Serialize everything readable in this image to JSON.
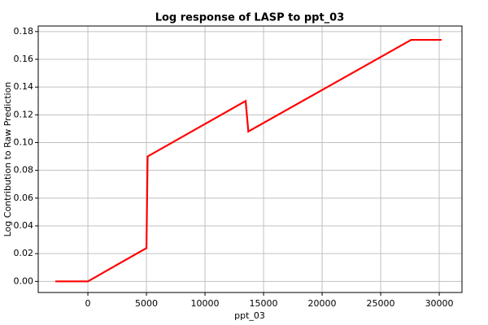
{
  "chart_data": {
    "type": "line",
    "title": "Log response of LASP to ppt_03",
    "x_label": "ppt_03",
    "y_label": "Log Contribution to Raw Prediction",
    "x": [
      -2780,
      0,
      5000,
      5100,
      13470,
      13700,
      27600,
      30200
    ],
    "series": [
      {
        "color": "#ff0000",
        "values": [
          0,
          0,
          0.024,
          0.09,
          0.13,
          0.108,
          0.174,
          0.174
        ]
      }
    ],
    "xlim": [
      -4240,
      31940
    ],
    "ylim": [
      -0.008,
      0.184
    ],
    "xticks": [
      0,
      5000,
      10000,
      15000,
      20000,
      25000,
      30000
    ],
    "yticks": [
      {
        "value": 0,
        "label": "0.00"
      },
      0.02,
      0.04,
      0.06,
      0.08,
      {
        "value": 0.1,
        "label": "0.10"
      },
      0.12,
      0.14,
      0.16,
      0.18
    ],
    "grid": true
  }
}
